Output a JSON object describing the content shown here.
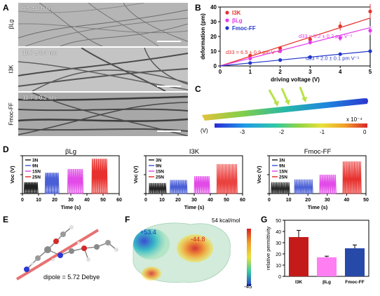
{
  "panels": {
    "A": "A",
    "B": "B",
    "C": "C",
    "D": "D",
    "E": "E",
    "F": "F",
    "G": "G"
  },
  "panel_a": {
    "rows": [
      {
        "side_label": "βLg",
        "size": "6.5 ± 0.6 nm"
      },
      {
        "side_label": "I3K",
        "size": "10.7 ± 0.4 nm"
      },
      {
        "side_label": "Fmoc-FF",
        "size": "11.7 ± 0.2 nm"
      }
    ]
  },
  "chart_data": [
    {
      "panel": "B",
      "type": "scatter",
      "xlabel": "driving voltage (V)",
      "ylabel": "deformation (pm)",
      "xlim": [
        0,
        5
      ],
      "ylim": [
        0,
        40
      ],
      "xticks": [
        "0",
        "1",
        "2",
        "3",
        "4",
        "5"
      ],
      "yticks": [
        "0",
        "10",
        "20",
        "30",
        "40"
      ],
      "legend_position": "top-left",
      "series": [
        {
          "name": "I3K",
          "color": "#e8312e",
          "x": [
            1,
            2,
            3,
            4,
            5
          ],
          "y": [
            7,
            12,
            18,
            27,
            37
          ],
          "err": [
            1,
            1.5,
            2,
            3,
            5
          ],
          "fit_slope": 6.5
        },
        {
          "name": "βLg",
          "color": "#e23be8",
          "x": [
            1,
            2,
            3,
            4,
            5
          ],
          "y": [
            5,
            10,
            16,
            19,
            24
          ],
          "err": [
            1,
            1,
            1.5,
            2,
            3
          ],
          "fit_slope": 5.2
        },
        {
          "name": "Fmoc-FF",
          "color": "#2236c8",
          "x": [
            1,
            2,
            3,
            4,
            5
          ],
          "y": [
            2,
            4,
            6,
            8,
            10
          ],
          "err": [
            0.4,
            0.6,
            0.8,
            1,
            1.2
          ],
          "fit_slope": 2.0
        }
      ],
      "annotations": [
        "d33 = 6.5 ± 0.9 pm V⁻¹",
        "d33 = 5.2 ± 0.2 pm V⁻¹",
        "d33 = 2.0 ± 0.1 pm V⁻¹"
      ]
    },
    {
      "panel": "D",
      "type": "line",
      "title": "βLg",
      "xlabel": "Time (s)",
      "ylabel": "Voc (V)",
      "xlim": [
        0,
        60
      ],
      "ylim": [
        0,
        1
      ],
      "xticks": [
        "0",
        "10",
        "20",
        "30",
        "40",
        "50",
        "60"
      ],
      "yticks": [
        "0.0",
        "0.5",
        "1.0"
      ],
      "series": [
        {
          "name": "3N",
          "color": "#222222",
          "t_start": 1,
          "t_end": 9,
          "amplitude": 0.3
        },
        {
          "name": "9N",
          "color": "#4a5fd6",
          "t_start": 14,
          "t_end": 22,
          "amplitude": 0.55
        },
        {
          "name": "15N",
          "color": "#e24be8",
          "t_start": 28,
          "t_end": 37,
          "amplitude": 0.65
        },
        {
          "name": "25N",
          "color": "#e8312e",
          "t_start": 43,
          "t_end": 52,
          "amplitude": 0.92
        }
      ]
    },
    {
      "panel": "D",
      "type": "line",
      "title": "I3K",
      "xlabel": "Time (s)",
      "ylabel": "Voc (V)",
      "xlim": [
        0,
        60
      ],
      "ylim": [
        0,
        1
      ],
      "xticks": [
        "0",
        "10",
        "20",
        "30",
        "40",
        "50",
        "60"
      ],
      "yticks": [
        "0.0",
        "0.5",
        "1.0"
      ],
      "series": [
        {
          "name": "3N",
          "color": "#222222",
          "t_start": 2,
          "t_end": 12,
          "amplitude": 0.28
        },
        {
          "name": "9N",
          "color": "#4a5fd6",
          "t_start": 15,
          "t_end": 25,
          "amplitude": 0.36
        },
        {
          "name": "15N",
          "color": "#e24be8",
          "t_start": 30,
          "t_end": 39,
          "amplitude": 0.46
        },
        {
          "name": "25N",
          "color": "#e8312e",
          "t_start": 44,
          "t_end": 56,
          "amplitude": 0.78
        }
      ]
    },
    {
      "panel": "D",
      "type": "line",
      "title": "Fmoc-FF",
      "xlabel": "Time (s)",
      "ylabel": "Voc (V)",
      "xlim": [
        0,
        50
      ],
      "ylim": [
        0,
        0.4
      ],
      "xticks": [
        "0",
        "10",
        "20",
        "30",
        "40",
        "50"
      ],
      "yticks": [
        "0.0",
        "0.2",
        "0.4"
      ],
      "series": [
        {
          "name": "3N",
          "color": "#222222",
          "t_start": 1,
          "t_end": 10,
          "amplitude": 0.12
        },
        {
          "name": "9N",
          "color": "#4a5fd6",
          "t_start": 13,
          "t_end": 22,
          "amplitude": 0.15
        },
        {
          "name": "15N",
          "color": "#e24be8",
          "t_start": 26,
          "t_end": 34,
          "amplitude": 0.2
        },
        {
          "name": "25N",
          "color": "#e8312e",
          "t_start": 38,
          "t_end": 47,
          "amplitude": 0.34
        }
      ]
    },
    {
      "panel": "G",
      "type": "bar",
      "ylabel": "relative permittivity",
      "categories": [
        "I3K",
        "βLg",
        "Fmoc-FF"
      ],
      "values": [
        35,
        17,
        25
      ],
      "errors": [
        6,
        1,
        3
      ],
      "colors": [
        "#c51a1a",
        "#ff7ef2",
        "#2749a8"
      ],
      "ylim": [
        0,
        50
      ],
      "yticks": [
        "0",
        "10",
        "20",
        "30",
        "40",
        "50"
      ]
    }
  ],
  "panel_c": {
    "unit": "(V)",
    "exponent": "x 10⁻⁴",
    "ticks": [
      "-3",
      "-2",
      "-1",
      "0"
    ]
  },
  "panel_e": {
    "dipole": "dipole = 5.72 Debye"
  },
  "panel_f": {
    "max_label": "54 kcal/mol",
    "min_label": "-45",
    "pos_value": "+53.4",
    "neg_value": "-44.8"
  }
}
